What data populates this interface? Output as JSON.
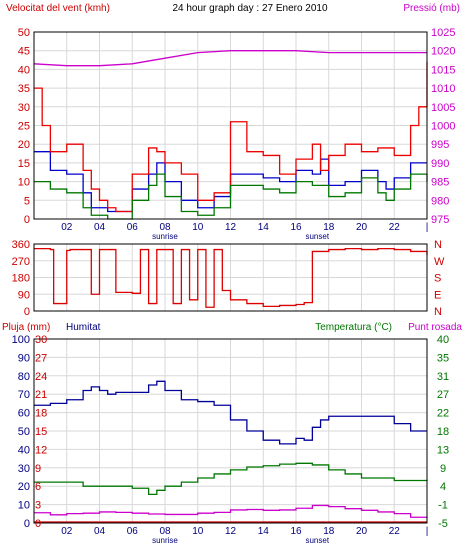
{
  "colors": {
    "bg": "#ffffff",
    "frame": "#000000",
    "grid": "#d8d8d8",
    "wind_text": "#cc0000",
    "pressure_text": "#cc00cc",
    "rain_text": "#cc0000",
    "humidity_text": "#000080",
    "temp_text": "#007700",
    "dew_text": "#cc00cc",
    "wind_avg": "#0000cc",
    "wind_gust": "#ee0000",
    "wind_dir": "#dd0000",
    "pressure": "#cc00cc",
    "temperature": "#007700",
    "dewpoint": "#cc00cc",
    "humidity": "#000099",
    "rain": "#cc0000"
  },
  "header": {
    "title": "24 hour graph day : 27 Enero 2010"
  },
  "chart_data": [
    {
      "type": "line",
      "name": "wind-pressure",
      "ylabel_left": "Velocitat del vent (kmh)",
      "ylabel_right": "Pressió (mb)",
      "y_ticks_left": [
        "50",
        "45",
        "40",
        "35",
        "30",
        "25",
        "20",
        "15",
        "10",
        "5",
        "0"
      ],
      "y_ticks_right": [
        "1025",
        "1020",
        "1015",
        "1010",
        "1005",
        "1000",
        "995",
        "990",
        "985",
        "980",
        "975"
      ],
      "ylim_left": [
        0,
        50
      ],
      "ylim_right": [
        975,
        1025
      ],
      "x_ticks": [
        "02",
        "04",
        "06",
        "08",
        "10",
        "12",
        "14",
        "16",
        "18",
        "20",
        "22"
      ],
      "x_annotations": [
        "sunrise",
        "sunset"
      ],
      "grid": true,
      "series": [
        {
          "role": "wind_avg",
          "x": [
            0,
            1,
            2,
            3,
            3.5,
            4,
            4.5,
            5,
            6,
            7,
            7.5,
            8,
            9,
            10,
            11,
            12,
            13,
            14,
            15,
            16,
            17,
            17.5,
            18,
            19,
            20,
            21,
            21.5,
            22,
            23,
            24
          ],
          "y": [
            18,
            13,
            12,
            7,
            3,
            3,
            2,
            2,
            8,
            12,
            15,
            10,
            5,
            3,
            6,
            12,
            12,
            11,
            10,
            13,
            12,
            16,
            9,
            10,
            13,
            10,
            8,
            11,
            15,
            15
          ]
        },
        {
          "role": "wind_gust",
          "x": [
            0,
            0.5,
            1,
            2,
            3,
            3.5,
            4,
            4.5,
            5,
            6,
            7,
            7.5,
            8,
            9,
            10,
            11,
            12,
            13,
            14,
            15,
            16,
            16.5,
            17,
            17.5,
            18,
            19,
            20,
            21,
            22,
            23,
            23.5,
            24
          ],
          "y": [
            35,
            25,
            18,
            20,
            13,
            8,
            5,
            3,
            2,
            12,
            19,
            18,
            15,
            12,
            5,
            7,
            26,
            18,
            17,
            12,
            16,
            16,
            20,
            13,
            17,
            20,
            18,
            19,
            17,
            25,
            30,
            42
          ]
        },
        {
          "role": "wind_low",
          "x": [
            0,
            1,
            2,
            3,
            3.5,
            4,
            4.5,
            5,
            6,
            7,
            7.5,
            8,
            9,
            10,
            11,
            12,
            13,
            14,
            15,
            16,
            17,
            18,
            19,
            20,
            21,
            21.5,
            22,
            23,
            24
          ],
          "y": [
            10,
            8,
            7,
            3,
            1,
            1,
            0,
            0,
            5,
            9,
            12,
            6,
            2,
            1,
            3,
            9,
            9,
            8,
            7,
            10,
            9,
            6,
            7,
            11,
            7,
            5,
            8,
            12,
            10
          ]
        },
        {
          "role": "pressure",
          "x": [
            0,
            2,
            4,
            6,
            8,
            10,
            12,
            14,
            16,
            18,
            20,
            22,
            24
          ],
          "y": [
            1016.5,
            1016,
            1016,
            1016.5,
            1018,
            1019.5,
            1020,
            1020,
            1020,
            1019.5,
            1019.5,
            1019.5,
            1019.5
          ]
        }
      ]
    },
    {
      "type": "line",
      "name": "wind-direction",
      "y_ticks_left": [
        "360",
        "270",
        "180",
        "90",
        "0"
      ],
      "y_ticks_right": [
        "N",
        "W",
        "S",
        "E",
        "N"
      ],
      "ylim": [
        0,
        360
      ],
      "series": [
        {
          "role": "wind_dir",
          "x": [
            0,
            1,
            1.2,
            2,
            2.2,
            3,
            3.5,
            4,
            4.5,
            5,
            6,
            6.5,
            7,
            7.5,
            8,
            8.5,
            9,
            9.5,
            10,
            10.5,
            11,
            11.5,
            12,
            13,
            14,
            15,
            16,
            16.5,
            17,
            18,
            19,
            20,
            21,
            22,
            23,
            24
          ],
          "y": [
            335,
            330,
            40,
            325,
            330,
            330,
            90,
            330,
            330,
            100,
            95,
            330,
            40,
            330,
            330,
            40,
            330,
            60,
            330,
            20,
            330,
            110,
            60,
            40,
            25,
            30,
            35,
            45,
            320,
            330,
            335,
            330,
            335,
            330,
            320,
            300
          ]
        }
      ]
    },
    {
      "type": "line",
      "name": "rain-humidity-temperature",
      "ylabel_left1": "Pluja (mm)",
      "ylabel_left2": "Humitat",
      "ylabel_right1": "Temperatura (°C)",
      "ylabel_right2": "Punt rosada",
      "y_ticks_rain": [
        "30",
        "27",
        "24",
        "21",
        "18",
        "15",
        "12",
        "9",
        "6",
        "3",
        "0"
      ],
      "y_ticks_hum": [
        "100",
        "90",
        "80",
        "70",
        "60",
        "50",
        "40",
        "30",
        "20",
        "10",
        "0"
      ],
      "y_ticks_temp": [
        "40",
        "35",
        "31",
        "27",
        "22",
        "18",
        "13",
        "9",
        "4",
        "-1",
        "-5"
      ],
      "ylim_hum": [
        0,
        100
      ],
      "ylim_temp": [
        -5,
        40
      ],
      "series": [
        {
          "role": "humidity",
          "x": [
            0,
            1,
            2,
            3,
            3.5,
            4,
            4.5,
            5,
            6,
            7,
            7.5,
            8,
            9,
            10,
            11,
            12,
            13,
            14,
            15,
            16,
            16.5,
            17,
            17.5,
            18,
            19,
            20,
            21,
            22,
            23,
            24
          ],
          "y": [
            64,
            65,
            67,
            72,
            74,
            72,
            70,
            71,
            71,
            75,
            77,
            72,
            67,
            66,
            64,
            56,
            50,
            45,
            43,
            46,
            45,
            52,
            56,
            58,
            58,
            58,
            58,
            54,
            50,
            50
          ]
        },
        {
          "role": "temperature",
          "x": [
            0,
            1,
            2,
            3,
            4,
            5,
            6,
            7,
            7.5,
            8,
            9,
            10,
            11,
            12,
            13,
            14,
            15,
            16,
            16.5,
            17,
            18,
            19,
            20,
            21,
            22,
            23,
            24
          ],
          "y": [
            5,
            5,
            5,
            4,
            4,
            4,
            3.5,
            2,
            3,
            4,
            5,
            6,
            7,
            8,
            8.7,
            9,
            9.4,
            9.6,
            9.6,
            9.2,
            8,
            7,
            6,
            6,
            5.4,
            5.4,
            5.6
          ]
        },
        {
          "role": "dewpoint",
          "x": [
            0,
            1,
            2,
            3,
            4,
            5,
            6,
            7,
            8,
            9,
            10,
            11,
            12,
            13,
            14,
            15,
            16,
            17,
            18,
            19,
            20,
            21,
            22,
            23,
            24
          ],
          "y": [
            -2.5,
            -3,
            -2.7,
            -2.6,
            -2.3,
            -2.4,
            -2.6,
            -2.8,
            -2.9,
            -2.9,
            -2.6,
            -2.4,
            -1.8,
            -1.7,
            -1.9,
            -1.8,
            -1.4,
            -0.7,
            -1,
            -1.5,
            -1.9,
            -2.3,
            -2.7,
            -3.6,
            -3.8
          ]
        },
        {
          "role": "rain",
          "x": [
            0,
            24
          ],
          "y": [
            0,
            0
          ]
        }
      ]
    }
  ]
}
